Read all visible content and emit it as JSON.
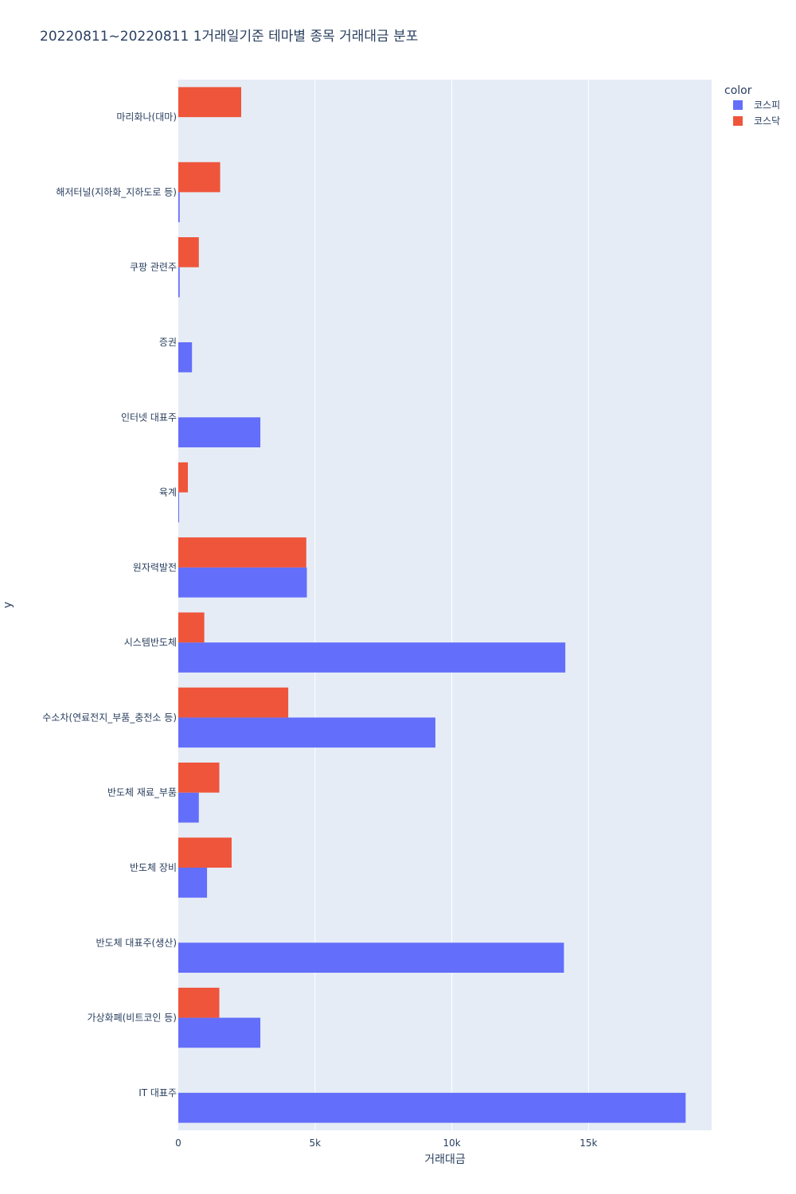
{
  "chart_data": {
    "type": "bar",
    "orientation": "horizontal",
    "title": "20220811~20220811 1거래일기준 테마별 종목 거래대금 분포",
    "xlabel": "거래대금",
    "ylabel": "y",
    "xlim": [
      0,
      19500
    ],
    "xticks": [
      {
        "value": 0,
        "label": "0"
      },
      {
        "value": 5000,
        "label": "5k"
      },
      {
        "value": 10000,
        "label": "10k"
      },
      {
        "value": 15000,
        "label": "15k"
      }
    ],
    "categories": [
      "IT 대표주",
      "가상화폐(비트코인 등)",
      "반도체 대표주(생산)",
      "반도체 장비",
      "반도체 재료_부품",
      "수소차(연료전지_부품_충전소 등)",
      "시스템반도체",
      "원자력발전",
      "육계",
      "인터넷 대표주",
      "증권",
      "쿠팡 관련주",
      "해저터널(지하화_지하도로 등)",
      "마리화나(대마)"
    ],
    "legend_title": "color",
    "legend_position": "top-right",
    "grid": true,
    "series": [
      {
        "name": "코스피",
        "color": "#636efa",
        "values": [
          18550,
          3000,
          14100,
          1050,
          750,
          9400,
          14150,
          4700,
          30,
          3000,
          500,
          50,
          50,
          0
        ]
      },
      {
        "name": "코스닥",
        "color": "#ef553b",
        "values": [
          0,
          1500,
          0,
          1950,
          1500,
          4020,
          950,
          4680,
          350,
          0,
          0,
          750,
          1530,
          2300
        ]
      }
    ]
  }
}
